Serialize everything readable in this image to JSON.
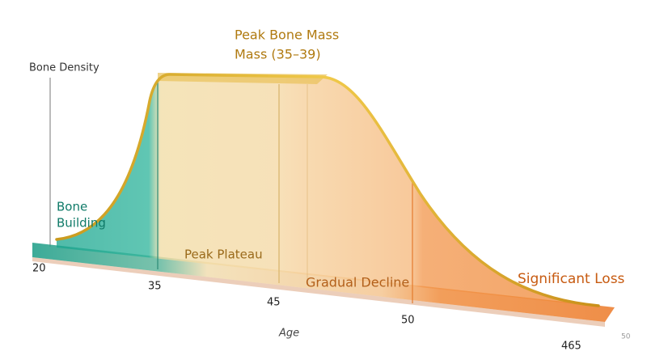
{
  "title": [
    "Peak Bone Mass",
    "Mass (35–39)"
  ],
  "y_axis_label": "Bone Density",
  "x_axis_label": "Age",
  "phases": [
    "Bone",
    "Building",
    "Peak Plateau",
    "Gradual Decline",
    "Significant Loss"
  ],
  "x_tick_labels": [
    "20",
    "35",
    "45",
    "50",
    "465"
  ],
  "side_label": "50"
}
